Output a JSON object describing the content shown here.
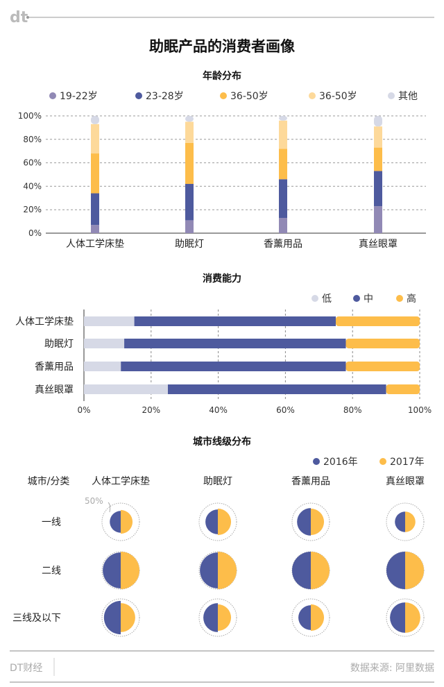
{
  "header": {
    "logo": "dt",
    "title": "助眠产品的消费者画像"
  },
  "colors": {
    "age": [
      "#9189b5",
      "#4e5a9e",
      "#fdbd4a",
      "#fdd99a",
      "#d6d9e6"
    ],
    "spend": [
      "#d6d9e6",
      "#4e5a9e",
      "#fdbd4a"
    ],
    "city": [
      "#4e5a9e",
      "#fdbd4a"
    ]
  },
  "chart_data": [
    {
      "type": "bar",
      "stacked": true,
      "orientation": "vertical",
      "title": "年龄分布",
      "categories": [
        "人体工学床垫",
        "助眠灯",
        "香薰用品",
        "真丝眼罩"
      ],
      "y_ticks": [
        "0%",
        "20%",
        "40%",
        "60%",
        "80%",
        "100%"
      ],
      "ylim": [
        0,
        100
      ],
      "grid": true,
      "legend": "top",
      "series": [
        {
          "name": "19-22岁",
          "values": [
            7,
            11,
            13,
            23
          ]
        },
        {
          "name": "23-28岁",
          "values": [
            27,
            31,
            33,
            30
          ]
        },
        {
          "name": "36-50岁",
          "values": [
            34,
            35,
            26,
            20
          ]
        },
        {
          "name": "36-50岁",
          "values": [
            25,
            18,
            24,
            18
          ]
        },
        {
          "name": "其他",
          "values": [
            7,
            5,
            4,
            9
          ]
        }
      ]
    },
    {
      "type": "bar",
      "stacked": true,
      "orientation": "horizontal",
      "title": "消费能力",
      "categories": [
        "人体工学床垫",
        "助眠灯",
        "香薰用品",
        "真丝眼罩"
      ],
      "x_ticks": [
        "0%",
        "20%",
        "40%",
        "60%",
        "80%",
        "100%"
      ],
      "xlim": [
        0,
        100
      ],
      "grid": true,
      "legend": "top-right",
      "series": [
        {
          "name": "低",
          "values": [
            15,
            12,
            11,
            25
          ]
        },
        {
          "name": "中",
          "values": [
            60,
            66,
            67,
            65
          ]
        },
        {
          "name": "高",
          "values": [
            25,
            22,
            22,
            10
          ]
        }
      ]
    },
    {
      "type": "pie",
      "title": "城市线级分布",
      "row_header": "城市/分类",
      "categories": [
        "人体工学床垫",
        "助眠灯",
        "香薰用品",
        "真丝眼罩"
      ],
      "rows": [
        "一线",
        "二线",
        "三线及以下"
      ],
      "reference_label": "50%",
      "legend": "top-right",
      "series": [
        {
          "name": "2016年",
          "values": [
            [
              17,
              22,
              27,
              15
            ],
            [
              46,
              46,
              50,
              50
            ],
            [
              40,
              30,
              22,
              33
            ]
          ]
        },
        {
          "name": "2017年",
          "values": [
            [
              20,
              25,
              25,
              15
            ],
            [
              50,
              50,
              50,
              50
            ],
            [
              30,
              25,
              25,
              33
            ]
          ]
        }
      ]
    }
  ],
  "footer": {
    "brand": "DT财经",
    "source": "数据来源: 阿里数据"
  }
}
